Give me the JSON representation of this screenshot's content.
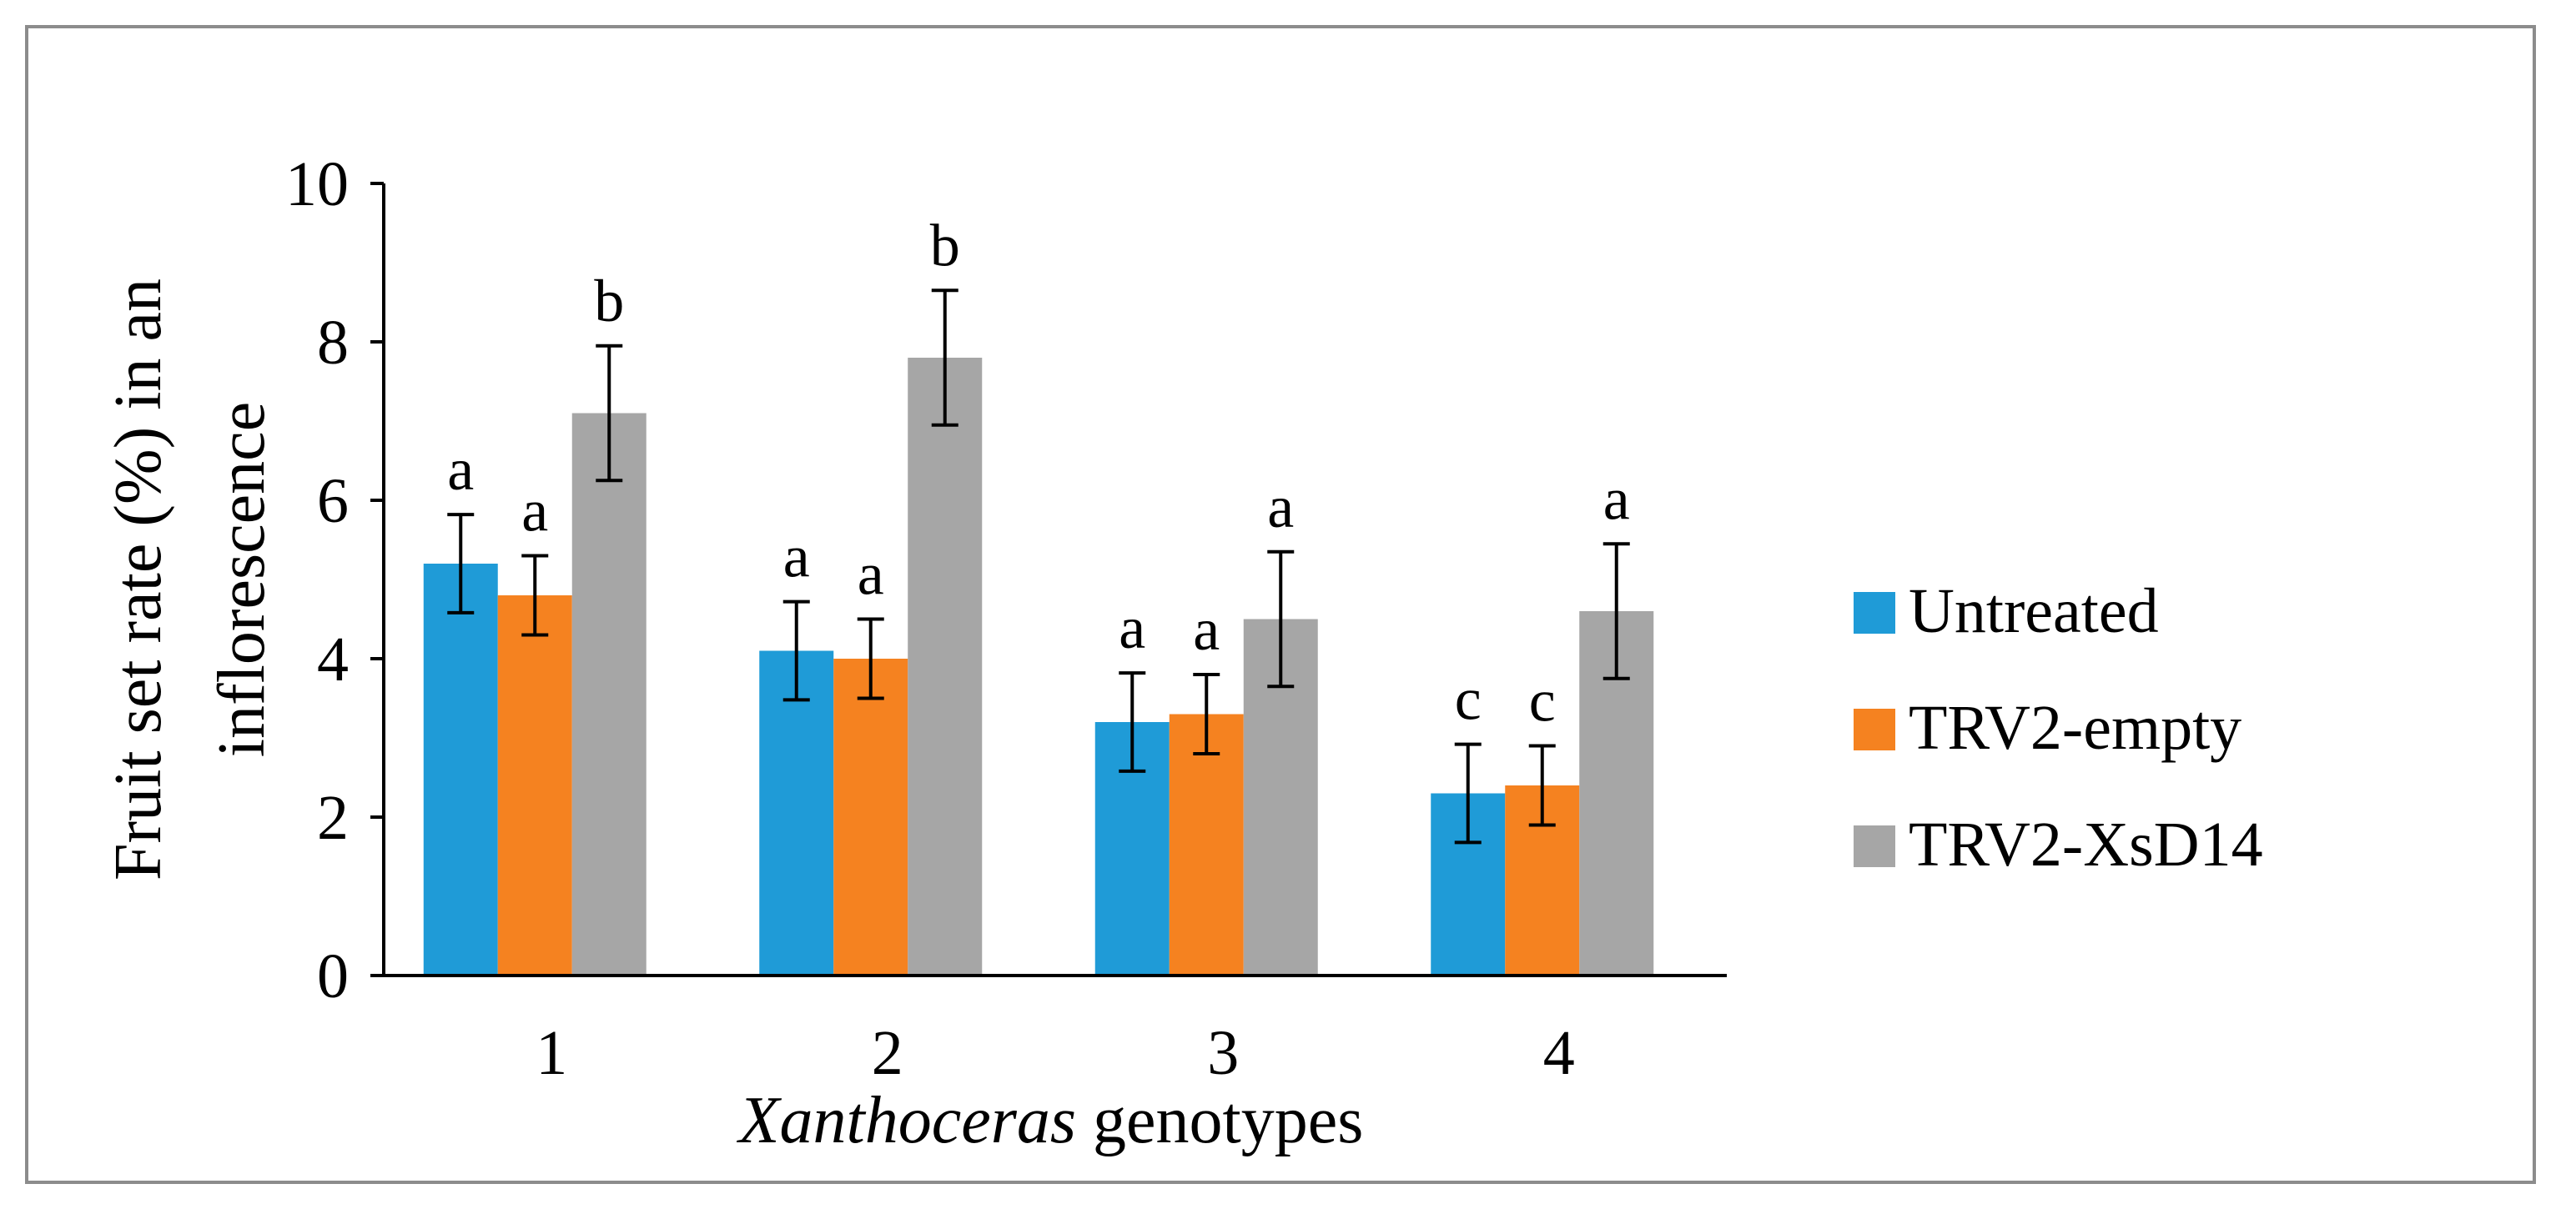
{
  "chart_data": {
    "type": "bar",
    "title": "",
    "xlabel": {
      "italic_part": "Xanthoceras",
      "rest": " genotypes"
    },
    "ylabel": [
      "Fruit set rate (%) in an",
      "inflorescence"
    ],
    "ylim": [
      0,
      10
    ],
    "yticks": [
      "0",
      "2",
      "4",
      "6",
      "8",
      "10"
    ],
    "ytick_values": [
      0,
      2,
      4,
      6,
      8,
      10
    ],
    "categories": [
      "1",
      "2",
      "3",
      "4"
    ],
    "legend_position": "right",
    "series": [
      {
        "name": "Untreated",
        "color": "#1f9bd7",
        "values": [
          5.2,
          4.1,
          3.2,
          2.3
        ],
        "errors": [
          0.62,
          0.62,
          0.62,
          0.62
        ],
        "letters": [
          "a",
          "a",
          "a",
          "c"
        ]
      },
      {
        "name": "TRV2-empty",
        "color": "#f58220",
        "values": [
          4.8,
          4.0,
          3.3,
          2.4
        ],
        "errors": [
          0.5,
          0.5,
          0.5,
          0.5
        ],
        "letters": [
          "a",
          "a",
          "a",
          "c"
        ]
      },
      {
        "name": "TRV2-XsD14",
        "color": "#a6a6a6",
        "values": [
          7.1,
          7.8,
          4.5,
          4.6
        ],
        "errors": [
          0.85,
          0.85,
          0.85,
          0.85
        ],
        "letters": [
          "b",
          "b",
          "a",
          "a"
        ]
      }
    ]
  }
}
